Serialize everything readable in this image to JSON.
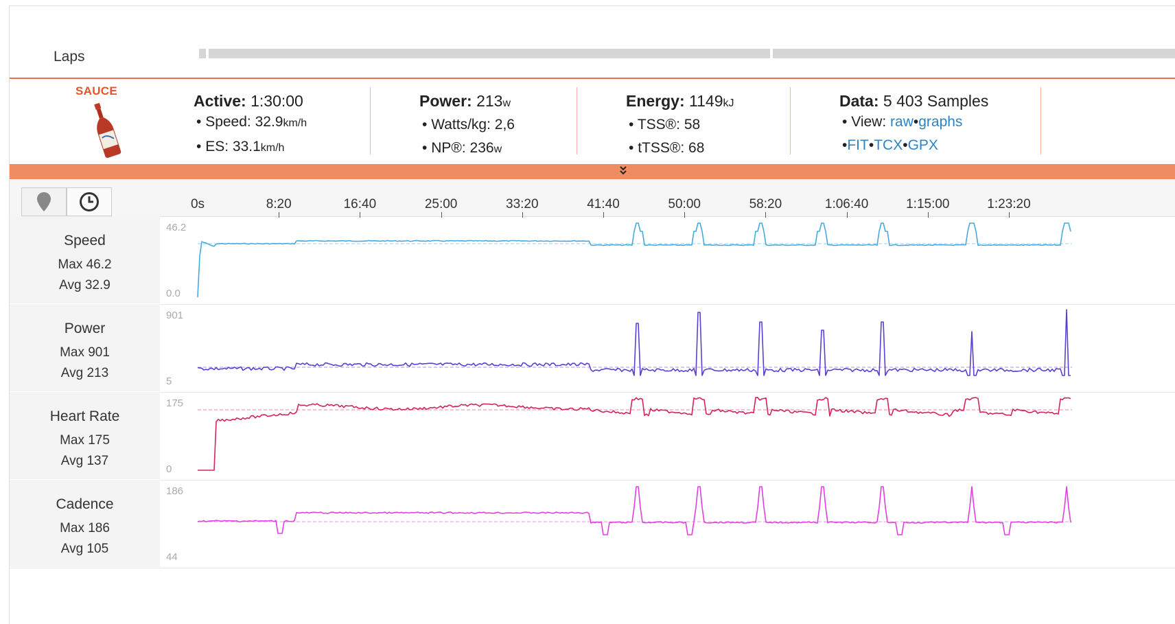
{
  "laps": {
    "label": "Laps"
  },
  "brand": {
    "name": "SAUCE"
  },
  "summary": {
    "active": {
      "label": "Active:",
      "value": "1:30:00"
    },
    "speed": {
      "label": "Speed:",
      "value": "32.9",
      "unit": "km/h"
    },
    "es": {
      "label": "ES:",
      "value": "33.1",
      "unit": "km/h"
    },
    "power": {
      "label": "Power:",
      "value": "213",
      "unit": "w"
    },
    "wattskg": {
      "label": "Watts/kg:",
      "value": "2,6"
    },
    "np": {
      "label": "NP®:",
      "value": "236",
      "unit": "w"
    },
    "energy": {
      "label": "Energy:",
      "value": "1149",
      "unit": "kJ"
    },
    "tss": {
      "label": "TSS®:",
      "value": "58"
    },
    "ttss": {
      "label": "tTSS®:",
      "value": "68"
    },
    "data": {
      "label": "Data:",
      "value": "5 403 Samples"
    },
    "view": {
      "label": "View:",
      "raw": "raw",
      "graphs": "graphs"
    },
    "exports": {
      "fit": "FIT",
      "tcx": "TCX",
      "gpx": "GPX"
    }
  },
  "colors": {
    "accent": "#e8704a",
    "speed": "#4aa8dc",
    "power": "#5a3fd0",
    "heart": "#d0245a",
    "cadence": "#e040e0",
    "link": "#2a84c6"
  },
  "icons": {
    "map": "map-pin-icon",
    "time": "clock-icon",
    "expand": "double-chevron-down-icon"
  },
  "time_axis": {
    "ticks": [
      "0s",
      "8:20",
      "16:40",
      "25:00",
      "33:20",
      "41:40",
      "50:00",
      "58:20",
      "1:06:40",
      "1:15:00",
      "1:23:20"
    ]
  },
  "graphs": [
    {
      "name": "Speed",
      "max_label": "Max 46.2",
      "avg_label": "Avg 32.9",
      "axis_max": "46.2",
      "axis_min": "0.0"
    },
    {
      "name": "Power",
      "max_label": "Max 901",
      "avg_label": "Avg 213",
      "axis_max": "901",
      "axis_min": "5"
    },
    {
      "name": "Heart Rate",
      "max_label": "Max 175",
      "avg_label": "Avg 137",
      "axis_max": "175",
      "axis_min": "0"
    },
    {
      "name": "Cadence",
      "max_label": "Max 186",
      "avg_label": "Avg 105",
      "axis_max": "186",
      "axis_min": "44"
    }
  ]
}
